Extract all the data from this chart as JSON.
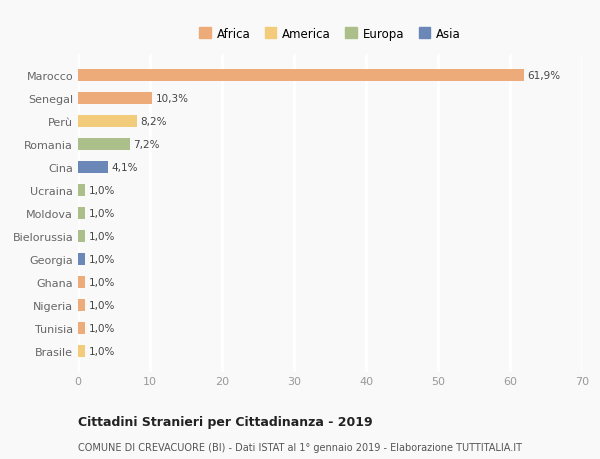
{
  "categories": [
    "Brasile",
    "Tunisia",
    "Nigeria",
    "Ghana",
    "Georgia",
    "Bielorussia",
    "Moldova",
    "Ucraina",
    "Cina",
    "Romania",
    "Perù",
    "Senegal",
    "Marocco"
  ],
  "values": [
    1.0,
    1.0,
    1.0,
    1.0,
    1.0,
    1.0,
    1.0,
    1.0,
    4.1,
    7.2,
    8.2,
    10.3,
    61.9
  ],
  "labels": [
    "1,0%",
    "1,0%",
    "1,0%",
    "1,0%",
    "1,0%",
    "1,0%",
    "1,0%",
    "1,0%",
    "4,1%",
    "7,2%",
    "8,2%",
    "10,3%",
    "61,9%"
  ],
  "continent_colors": {
    "Africa": "#EDAB7A",
    "America": "#F2CC7A",
    "Europa": "#AABF8A",
    "Asia": "#6A87B8"
  },
  "country_continent": {
    "Marocco": "Africa",
    "Senegal": "Africa",
    "Perù": "America",
    "Romania": "Europa",
    "Cina": "Asia",
    "Ucraina": "Europa",
    "Moldova": "Europa",
    "Bielorussia": "Europa",
    "Georgia": "Asia",
    "Ghana": "Africa",
    "Nigeria": "Africa",
    "Tunisia": "Africa",
    "Brasile": "America"
  },
  "xlim": [
    0,
    70
  ],
  "xticks": [
    0,
    10,
    20,
    30,
    40,
    50,
    60,
    70
  ],
  "title": "Cittadini Stranieri per Cittadinanza - 2019",
  "subtitle": "COMUNE DI CREVACUORE (BI) - Dati ISTAT al 1° gennaio 2019 - Elaborazione TUTTITALIA.IT",
  "background_color": "#F9F9F9",
  "grid_color": "#FFFFFF",
  "legend_items": [
    "Africa",
    "America",
    "Europa",
    "Asia"
  ]
}
